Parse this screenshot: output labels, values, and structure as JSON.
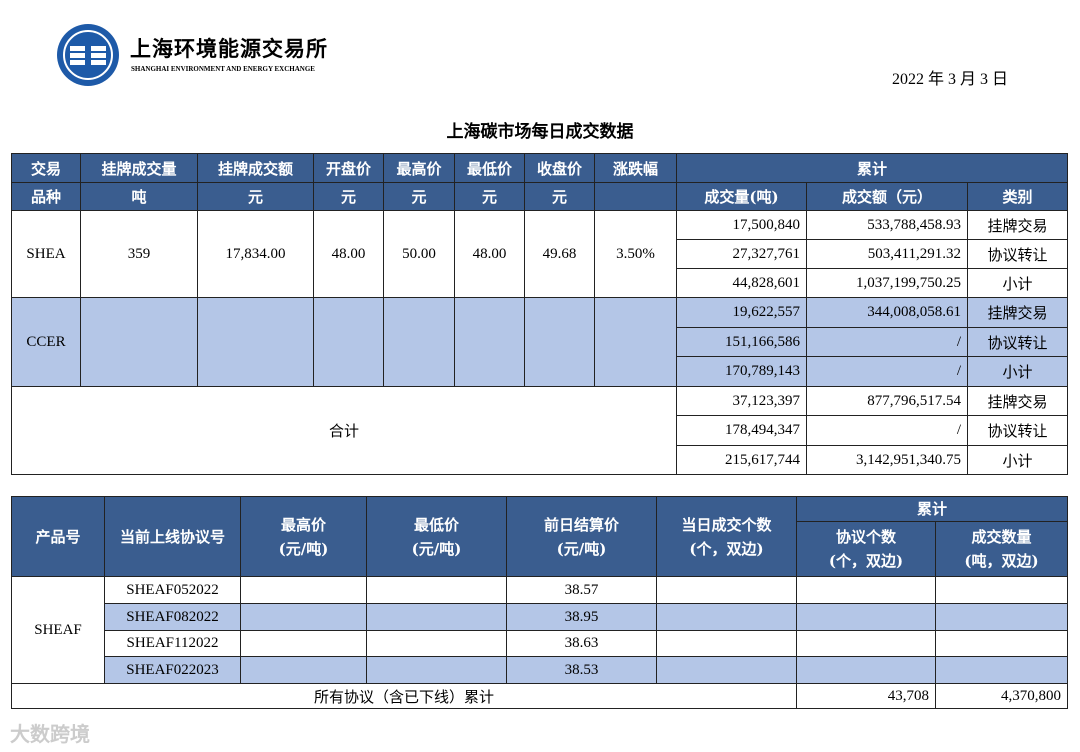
{
  "header": {
    "logo_cn": "上海环境能源交易所",
    "logo_en": "SHANGHAI ENVIRONMENT AND ENERGY EXCHANGE",
    "date": "2022 年 3 月 3 日"
  },
  "title": "上海碳市场每日成交数据",
  "table1": {
    "header_row1": [
      "交易",
      "挂牌成交量",
      "挂牌成交额",
      "开盘价",
      "最高价",
      "最低价",
      "收盘价",
      "涨跌幅",
      "累计"
    ],
    "header_row2": [
      "品种",
      "吨",
      "元",
      "元",
      "元",
      "元",
      "元",
      "成交量(吨)",
      "成交额（元）",
      "类别"
    ],
    "groups": [
      {
        "name": "SHEA",
        "cells": [
          "359",
          "17,834.00",
          "48.00",
          "50.00",
          "48.00",
          "49.68",
          "3.50%"
        ],
        "rows": [
          [
            "17,500,840",
            "533,788,458.93",
            "挂牌交易"
          ],
          [
            "27,327,761",
            "503,411,291.32",
            "协议转让"
          ],
          [
            "44,828,601",
            "1,037,199,750.25",
            "小计"
          ]
        ]
      },
      {
        "name": "CCER",
        "color": "#b4c6e7",
        "rows": [
          [
            "19,622,557",
            "344,008,058.61",
            "挂牌交易"
          ],
          [
            "151,166,586",
            "/",
            "协议转让"
          ],
          [
            "170,789,143",
            "/",
            "小计"
          ]
        ]
      }
    ],
    "total": {
      "name": "合计",
      "rows": [
        [
          "37,123,397",
          "877,796,517.54",
          "挂牌交易"
        ],
        [
          "178,494,347",
          "/",
          "协议转让"
        ],
        [
          "215,617,744",
          "3,142,951,340.75",
          "小计"
        ]
      ]
    }
  },
  "table2": {
    "columns": [
      [
        "产品号"
      ],
      [
        "当前上线协议号"
      ],
      [
        "最高价",
        "(元/吨)"
      ],
      [
        "最低价",
        "(元/吨)"
      ],
      [
        "前日结算价",
        "(元/吨)"
      ],
      [
        "当日成交个数",
        "(个，双边)"
      ]
    ],
    "cumulative": "累计",
    "cum_columns": [
      [
        "协议个数",
        "(个，双边)"
      ],
      [
        "成交数量",
        "(吨，双边)"
      ]
    ],
    "product": "SHEAF",
    "rows": [
      {
        "code": "SHEAF052022",
        "settle": "38.57"
      },
      {
        "code": "SHEAF082022",
        "settle": "38.95"
      },
      {
        "code": "SHEAF112022",
        "settle": "38.63"
      },
      {
        "code": "SHEAF022023",
        "settle": "38.53"
      }
    ],
    "total": {
      "label": "所有协议（含已下线）累计",
      "count": "43,708",
      "volume": "4,370,800"
    }
  },
  "watermark": "大数跨境"
}
